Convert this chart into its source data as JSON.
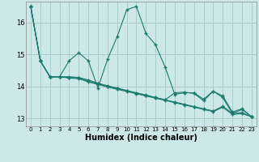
{
  "xlabel": "Humidex (Indice chaleur)",
  "background_color": "#cce8e8",
  "grid_color": "#aacccc",
  "line_color": "#1a7a6e",
  "xlim": [
    -0.5,
    23.5
  ],
  "ylim": [
    12.75,
    16.65
  ],
  "yticks": [
    13,
    14,
    15,
    16
  ],
  "xticks": [
    0,
    1,
    2,
    3,
    4,
    5,
    6,
    7,
    8,
    9,
    10,
    11,
    12,
    13,
    14,
    15,
    16,
    17,
    18,
    19,
    20,
    21,
    22,
    23
  ],
  "s1": [
    16.5,
    14.8,
    14.3,
    14.3,
    14.8,
    15.05,
    14.8,
    13.95,
    14.85,
    15.55,
    16.4,
    16.5,
    15.65,
    15.3,
    14.6,
    13.75,
    13.8,
    13.8,
    13.6,
    13.85,
    13.7,
    13.2,
    13.3,
    13.05
  ],
  "s2": [
    16.5,
    14.8,
    14.3,
    14.3,
    14.3,
    14.28,
    14.2,
    14.1,
    14.02,
    13.95,
    13.87,
    13.8,
    13.73,
    13.65,
    13.58,
    13.8,
    13.82,
    13.78,
    13.55,
    13.85,
    13.65,
    13.15,
    13.28,
    13.05
  ],
  "s3": [
    16.5,
    14.8,
    14.3,
    14.3,
    14.28,
    14.26,
    14.16,
    14.08,
    14.0,
    13.93,
    13.86,
    13.79,
    13.72,
    13.65,
    13.58,
    13.51,
    13.44,
    13.37,
    13.3,
    13.23,
    13.38,
    13.15,
    13.18,
    13.05
  ],
  "s4": [
    16.5,
    14.8,
    14.3,
    14.3,
    14.26,
    14.24,
    14.14,
    14.06,
    13.98,
    13.91,
    13.84,
    13.77,
    13.7,
    13.63,
    13.56,
    13.49,
    13.42,
    13.35,
    13.28,
    13.21,
    13.35,
    13.12,
    13.15,
    13.05
  ]
}
